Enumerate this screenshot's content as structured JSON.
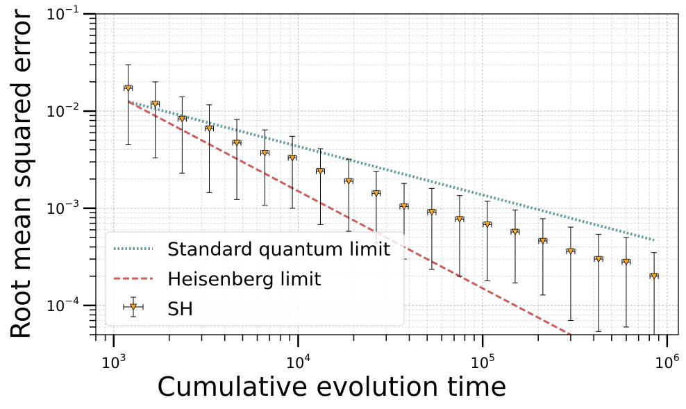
{
  "chart_data": {
    "type": "scatter",
    "xlabel": "Cumulative evolution time",
    "ylabel": "Root mean squared error",
    "xscale": "log",
    "yscale": "log",
    "xlim": [
      800,
      1150000
    ],
    "ylim": [
      5e-05,
      0.1
    ],
    "grid": "both-major-minor",
    "legend_position": "lower-left",
    "x_ticks": [
      {
        "value": 1000,
        "base": "10",
        "exp": "3"
      },
      {
        "value": 10000,
        "base": "10",
        "exp": "4"
      },
      {
        "value": 100000,
        "base": "10",
        "exp": "5"
      },
      {
        "value": 1000000,
        "base": "10",
        "exp": "6"
      }
    ],
    "y_ticks": [
      {
        "value": 0.0001,
        "base": "10",
        "exp": "−4"
      },
      {
        "value": 0.001,
        "base": "10",
        "exp": "−3"
      },
      {
        "value": 0.01,
        "base": "10",
        "exp": "−2"
      },
      {
        "value": 0.1,
        "base": "10",
        "exp": "−1"
      }
    ],
    "series": [
      {
        "name": "Standard quantum limit",
        "kind": "line",
        "style": "dotted",
        "color": "#5f9e98",
        "x": [
          1200,
          850000
        ],
        "y": [
          0.0125,
          0.00047
        ]
      },
      {
        "name": "Heisenberg limit",
        "kind": "line",
        "style": "dashed",
        "color": "#cd5c5c",
        "x": [
          1200,
          300000
        ],
        "y": [
          0.0125,
          5e-05
        ]
      },
      {
        "name": "SH",
        "kind": "errorbar",
        "marker": "triangle-down",
        "color": "#f5a623",
        "points": [
          {
            "x": 1200,
            "y": 0.0172,
            "lo": 0.0045,
            "hi": 0.03
          },
          {
            "x": 1680,
            "y": 0.0118,
            "lo": 0.0033,
            "hi": 0.02
          },
          {
            "x": 2350,
            "y": 0.0083,
            "lo": 0.0023,
            "hi": 0.014
          },
          {
            "x": 3300,
            "y": 0.0066,
            "lo": 0.00145,
            "hi": 0.0116
          },
          {
            "x": 4650,
            "y": 0.0047,
            "lo": 0.00123,
            "hi": 0.0082
          },
          {
            "x": 6600,
            "y": 0.0037,
            "lo": 0.00107,
            "hi": 0.0064
          },
          {
            "x": 9300,
            "y": 0.0033,
            "lo": 0.001,
            "hi": 0.0055
          },
          {
            "x": 13200,
            "y": 0.0024,
            "lo": 0.00068,
            "hi": 0.0041
          },
          {
            "x": 18800,
            "y": 0.0019,
            "lo": 0.00058,
            "hi": 0.0032
          },
          {
            "x": 26500,
            "y": 0.00142,
            "lo": 0.00044,
            "hi": 0.0024
          },
          {
            "x": 37500,
            "y": 0.00104,
            "lo": 0.0003,
            "hi": 0.0018
          },
          {
            "x": 53000,
            "y": 0.00091,
            "lo": 0.000235,
            "hi": 0.0016
          },
          {
            "x": 75000,
            "y": 0.00077,
            "lo": 0.0002,
            "hi": 0.00135
          },
          {
            "x": 106000,
            "y": 0.00068,
            "lo": 0.00018,
            "hi": 0.00118
          },
          {
            "x": 150000,
            "y": 0.00057,
            "lo": 0.00017,
            "hi": 0.00096
          },
          {
            "x": 212000,
            "y": 0.00046,
            "lo": 0.000128,
            "hi": 0.00078
          },
          {
            "x": 300000,
            "y": 0.00036,
            "lo": 7e-05,
            "hi": 0.00064
          },
          {
            "x": 425000,
            "y": 0.0003,
            "lo": 5.4e-05,
            "hi": 0.00054
          },
          {
            "x": 600000,
            "y": 0.00028,
            "lo": 6e-05,
            "hi": 0.0005
          },
          {
            "x": 850000,
            "y": 0.0002,
            "lo": 5e-05,
            "hi": 0.00035
          }
        ]
      }
    ],
    "legend": [
      {
        "label": "Standard quantum limit",
        "series": 0
      },
      {
        "label": "Heisenberg limit",
        "series": 1
      },
      {
        "label": "SH",
        "series": 2
      }
    ]
  }
}
